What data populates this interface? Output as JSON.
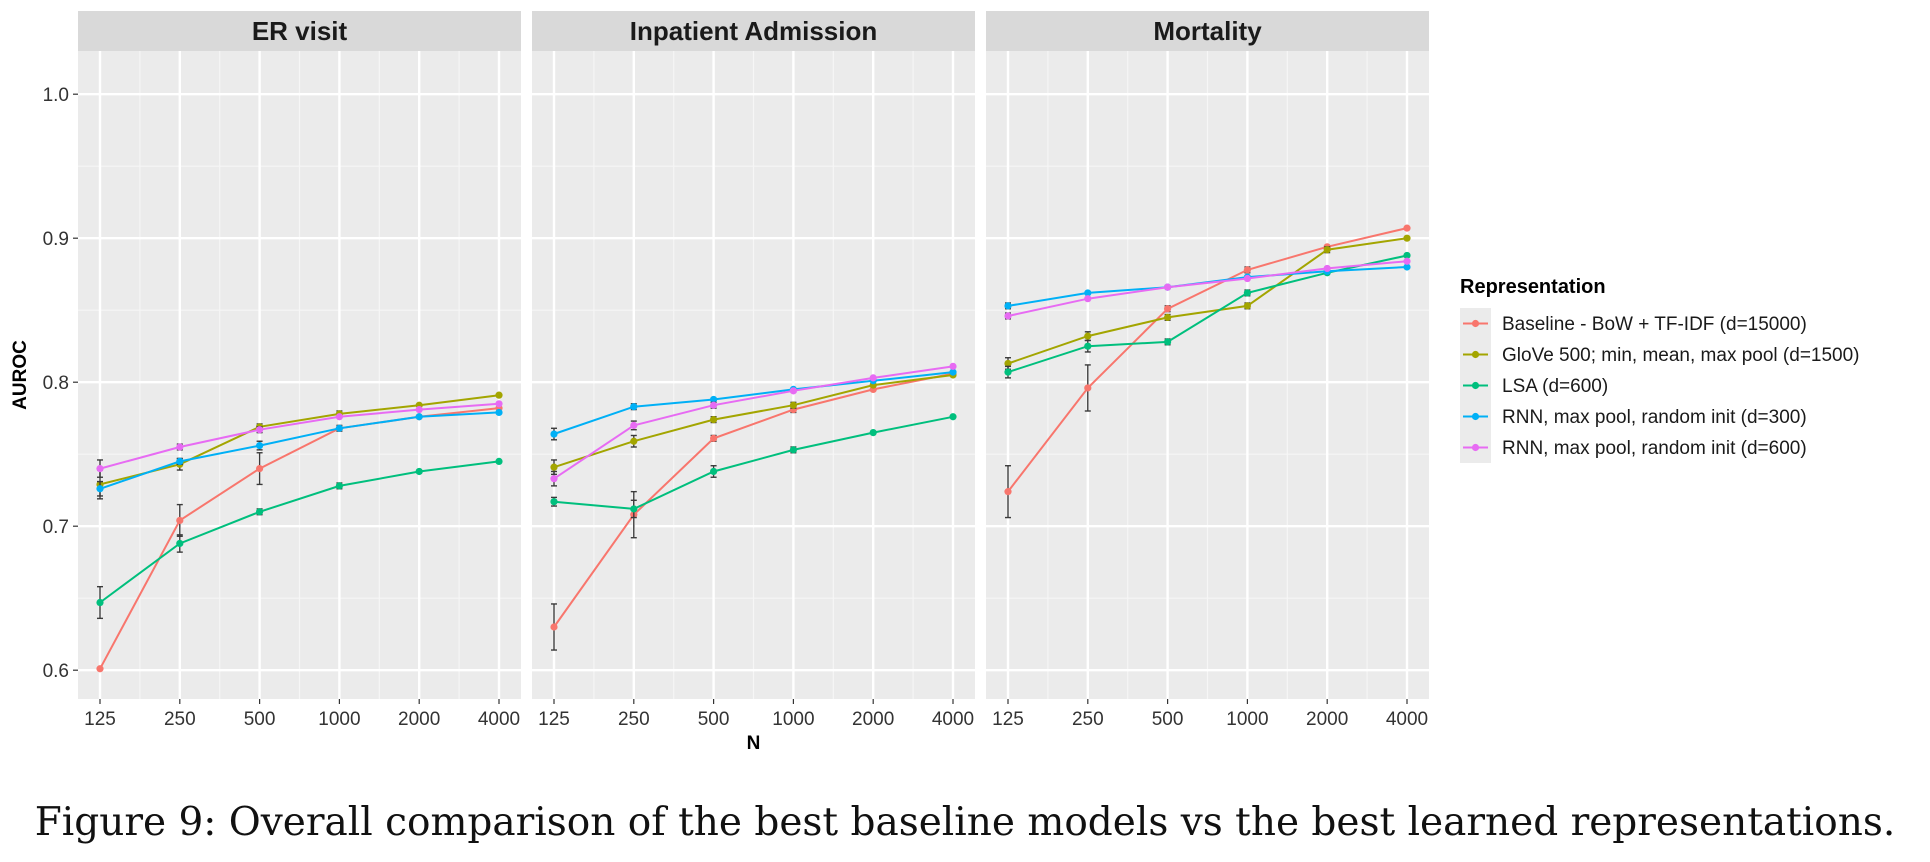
{
  "caption": "Figure 9: Overall comparison of the best baseline models vs the best learned representations.",
  "chart_data": {
    "type": "line",
    "xlabel": "N",
    "ylabel": "AUROC",
    "x": [
      125,
      250,
      500,
      1000,
      2000,
      4000
    ],
    "x_scale": "log",
    "ylim": [
      0.58,
      1.03
    ],
    "yticks": [
      0.6,
      0.7,
      0.8,
      0.9,
      1.0
    ],
    "ytick_labels": [
      "0.6",
      "0.7",
      "0.8",
      "0.9",
      "1.0"
    ],
    "grid": true,
    "legend": {
      "title": "Representation",
      "placement": "right"
    },
    "series": [
      {
        "name": "Baseline - BoW + TF-IDF (d=15000)",
        "color": "#F8766D"
      },
      {
        "name": "GloVe 500; min, mean, max pool (d=1500)",
        "color": "#A3A500"
      },
      {
        "name": "LSA (d=600)",
        "color": "#00BF7D"
      },
      {
        "name": "RNN, max pool, random init (d=300)",
        "color": "#00B0F6"
      },
      {
        "name": "RNN, max pool, random init (d=600)",
        "color": "#E76BF3"
      }
    ],
    "facets": [
      {
        "title": "ER visit",
        "values": [
          [
            0.601,
            0.704,
            0.74,
            0.768,
            0.776,
            0.782
          ],
          [
            0.729,
            0.743,
            0.769,
            0.778,
            0.784,
            0.791
          ],
          [
            0.647,
            0.688,
            0.71,
            0.728,
            0.738,
            0.745
          ],
          [
            0.726,
            0.745,
            0.756,
            0.768,
            0.776,
            0.779
          ],
          [
            0.74,
            0.755,
            0.767,
            0.776,
            0.781,
            0.785
          ]
        ],
        "errors": [
          [
            0.001,
            0.011,
            0.011,
            0.002,
            0.001,
            0.001
          ],
          [
            0.01,
            0.004,
            0.002,
            0.002,
            0.001,
            0.001
          ],
          [
            0.011,
            0.006,
            0.002,
            0.002,
            0.001,
            0.001
          ],
          [
            0.005,
            0.002,
            0.003,
            0.001,
            0.001,
            0.001
          ],
          [
            0.006,
            0.002,
            0.002,
            0.001,
            0.001,
            0.001
          ]
        ]
      },
      {
        "title": "Inpatient Admission",
        "values": [
          [
            0.63,
            0.708,
            0.761,
            0.781,
            0.795,
            0.806
          ],
          [
            0.741,
            0.759,
            0.774,
            0.784,
            0.798,
            0.805
          ],
          [
            0.717,
            0.712,
            0.738,
            0.753,
            0.765,
            0.776
          ],
          [
            0.764,
            0.783,
            0.788,
            0.795,
            0.801,
            0.807
          ],
          [
            0.733,
            0.77,
            0.784,
            0.794,
            0.803,
            0.811
          ]
        ],
        "errors": [
          [
            0.016,
            0.016,
            0.002,
            0.002,
            0.001,
            0.001
          ],
          [
            0.005,
            0.004,
            0.002,
            0.002,
            0.001,
            0.001
          ],
          [
            0.003,
            0.006,
            0.004,
            0.002,
            0.001,
            0.001
          ],
          [
            0.004,
            0.002,
            0.001,
            0.001,
            0.001,
            0.001
          ],
          [
            0.005,
            0.003,
            0.002,
            0.001,
            0.001,
            0.001
          ]
        ]
      },
      {
        "title": "Mortality",
        "values": [
          [
            0.724,
            0.796,
            0.851,
            0.878,
            0.894,
            0.907
          ],
          [
            0.813,
            0.832,
            0.845,
            0.853,
            0.892,
            0.9
          ],
          [
            0.807,
            0.825,
            0.828,
            0.862,
            0.876,
            0.888
          ],
          [
            0.853,
            0.862,
            0.866,
            0.873,
            0.877,
            0.88
          ],
          [
            0.846,
            0.858,
            0.866,
            0.872,
            0.879,
            0.884
          ]
        ],
        "errors": [
          [
            0.018,
            0.016,
            0.002,
            0.002,
            0.001,
            0.001
          ],
          [
            0.004,
            0.003,
            0.002,
            0.002,
            0.002,
            0.001
          ],
          [
            0.004,
            0.004,
            0.002,
            0.002,
            0.001,
            0.001
          ],
          [
            0.002,
            0.001,
            0.001,
            0.001,
            0.001,
            0.001
          ],
          [
            0.002,
            0.001,
            0.001,
            0.001,
            0.001,
            0.001
          ]
        ]
      }
    ]
  }
}
